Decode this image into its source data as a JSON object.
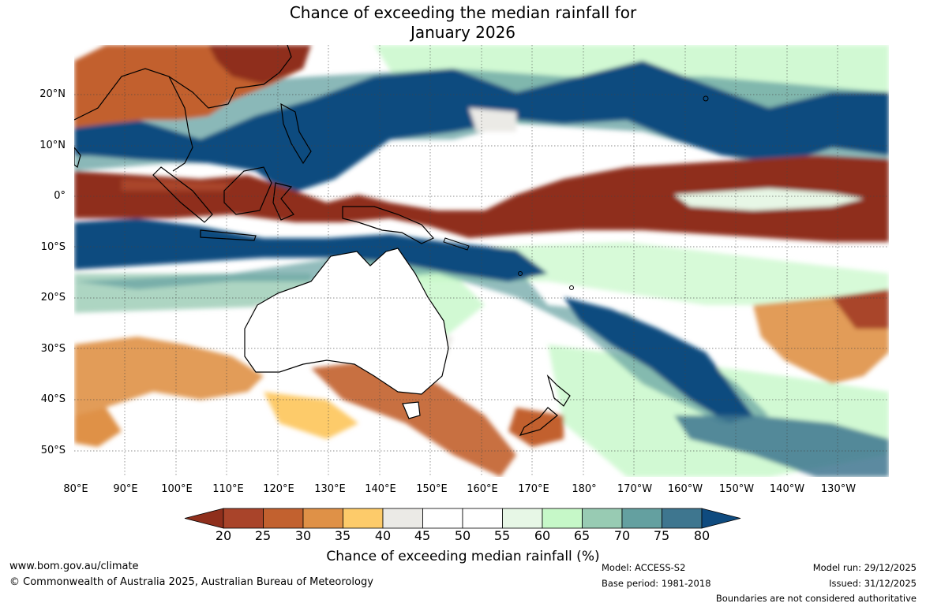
{
  "title": {
    "line1": "Chance of exceeding the median rainfall for",
    "line2": "January 2026"
  },
  "map": {
    "lat_labels": [
      "20°N",
      "10°N",
      "0°",
      "10°S",
      "20°S",
      "30°S",
      "40°S",
      "50°S"
    ],
    "lon_labels": [
      "80°E",
      "90°E",
      "100°E",
      "110°E",
      "120°E",
      "130°E",
      "140°E",
      "150°E",
      "160°E",
      "170°E",
      "180°",
      "170°W",
      "160°W",
      "150°W",
      "140°W",
      "130°W"
    ]
  },
  "legend": {
    "title": "Chance of exceeding median rainfall (%)",
    "ticks": [
      "20",
      "25",
      "30",
      "35",
      "40",
      "45",
      "50",
      "55",
      "60",
      "65",
      "70",
      "75",
      "80"
    ],
    "colors": {
      "below_20": "#8f2f1c",
      "c20_25": "#a9442a",
      "c25_30": "#c2612f",
      "c30_35": "#df9147",
      "c35_40": "#fdcb6a",
      "c40_45": "#ebeae6",
      "c45_50": "#ffffff",
      "c50_55": "#ffffff",
      "c55_60": "#e7f7e6",
      "c60_65": "#c6f8c8",
      "c65_70": "#98cbb3",
      "c70_75": "#64a0a0",
      "c75_80": "#3e768f",
      "above_80": "#0f4b7f"
    }
  },
  "footer": {
    "website": "www.bom.gov.au/climate",
    "copyright": "© Commonwealth of Australia 2025, Australian Bureau of Meteorology",
    "model": "Model: ACCESS-S2",
    "base_period": "Base period: 1981-2018",
    "model_run": "Model run: 29/12/2025",
    "issued": "Issued: 31/12/2025",
    "disclaimer": "Boundaries are not considered authoritative"
  }
}
